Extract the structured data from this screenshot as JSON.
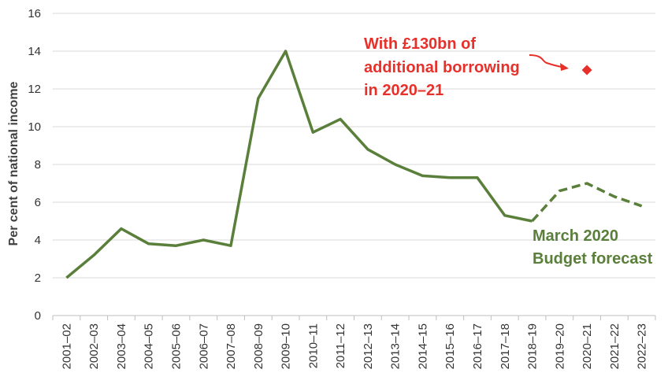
{
  "chart_data": {
    "type": "line",
    "title": "",
    "xlabel": "",
    "ylabel": "Per cent of national income",
    "ylim": [
      0,
      16
    ],
    "yticks": [
      0,
      2,
      4,
      6,
      8,
      10,
      12,
      14,
      16
    ],
    "grid": true,
    "categories": [
      "2001–02",
      "2002–03",
      "2003–04",
      "2004–05",
      "2005–06",
      "2006–07",
      "2007–08",
      "2008–09",
      "2009–10",
      "2010–11",
      "2011–12",
      "2012–13",
      "2013–14",
      "2014–15",
      "2015–16",
      "2016–17",
      "2017–18",
      "2018–19",
      "2019–20",
      "2020–21",
      "2021–22",
      "2022–23"
    ],
    "series": [
      {
        "values": [
          2.0,
          3.2,
          4.6,
          3.8,
          3.7,
          4.0,
          3.7,
          11.5,
          14.0,
          9.7,
          10.4,
          8.8,
          8.0,
          7.4,
          7.3,
          7.3,
          5.3,
          5.0,
          null,
          null,
          null,
          null
        ],
        "color": "#5a7f3a",
        "style": "solid"
      },
      {
        "values": [
          null,
          null,
          null,
          null,
          null,
          null,
          null,
          null,
          null,
          null,
          null,
          null,
          null,
          null,
          null,
          null,
          null,
          5.0,
          6.6,
          7.0,
          6.3,
          5.8
        ],
        "color": "#5a7f3a",
        "style": "dashed"
      }
    ],
    "points": [
      {
        "category": "2020–21",
        "value": 13.0,
        "color": "#e8302a",
        "marker": "diamond"
      }
    ],
    "annotations": [
      {
        "lines": [
          "With £130bn of",
          "additional borrowing",
          "in 2020–21"
        ],
        "color": "#e8302a"
      },
      {
        "lines": [
          "March 2020",
          "Budget forecast"
        ],
        "color": "#5a7f3a"
      }
    ]
  }
}
